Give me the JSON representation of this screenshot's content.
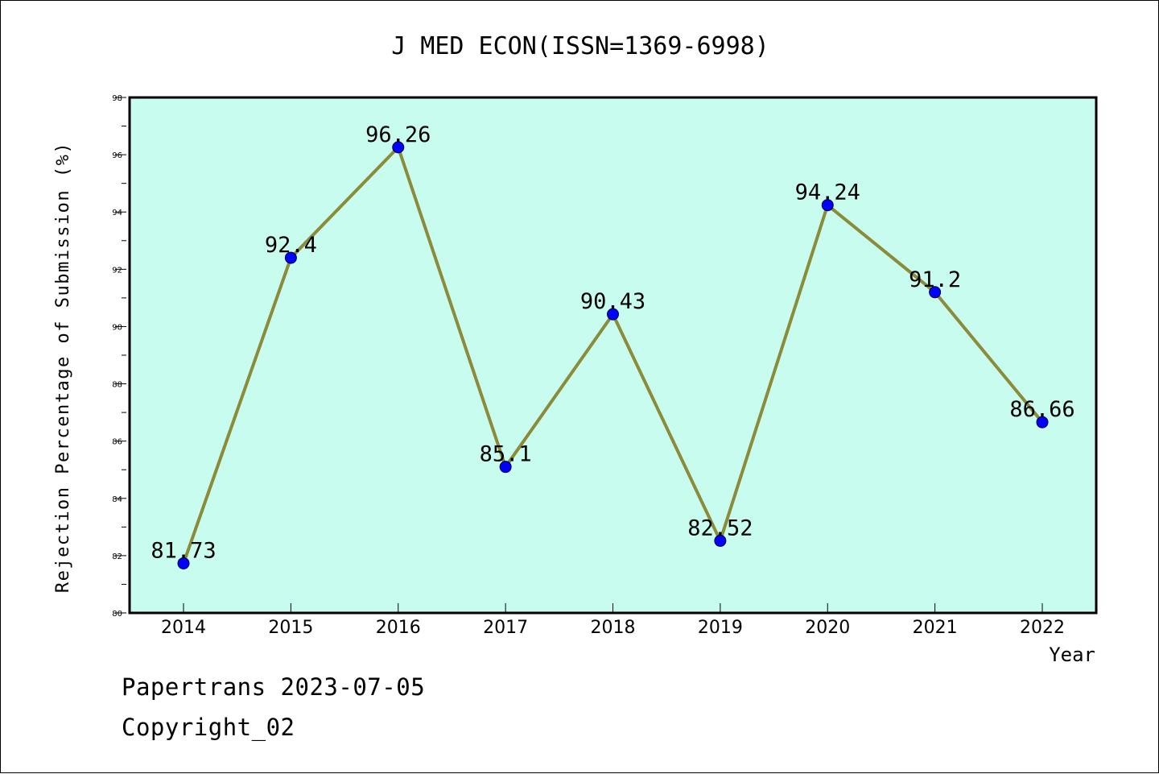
{
  "chart_data": {
    "type": "line",
    "title": "J MED ECON(ISSN=1369-6998)",
    "xlabel": "Year",
    "ylabel": "Rejection Percentage of Submission (%)",
    "categories": [
      "2014",
      "2015",
      "2016",
      "2017",
      "2018",
      "2019",
      "2020",
      "2021",
      "2022"
    ],
    "values": [
      81.73,
      92.4,
      96.26,
      85.1,
      90.43,
      82.52,
      94.24,
      91.2,
      86.66
    ],
    "data_labels": [
      "81.73",
      "92.4",
      "96.26",
      "85.1",
      "90.43",
      "82.52",
      "94.24",
      "91.2",
      "86.66"
    ],
    "ylim": [
      80,
      98
    ],
    "yticks": [
      "80",
      "82",
      "84",
      "86",
      "88",
      "90",
      "92",
      "94",
      "96",
      "98"
    ],
    "grid": false,
    "colors": {
      "plot_background": "#c8fcee",
      "line": "#8b8b3a",
      "marker": "#0000ff"
    }
  },
  "footer": {
    "line1": "Papertrans 2023-07-05",
    "line2": "Copyright_02"
  }
}
